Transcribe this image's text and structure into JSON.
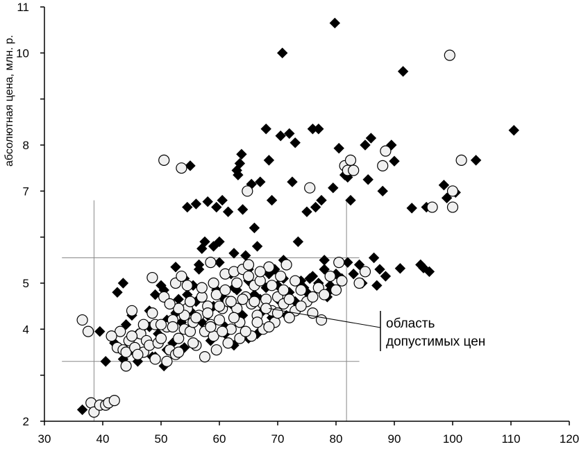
{
  "chart_data": {
    "type": "scatter",
    "title": "",
    "xlabel": "",
    "ylabel": "абсолютная цена, млн. р.",
    "xlim": [
      30,
      120
    ],
    "ylim": [
      2,
      11
    ],
    "x_ticks": [
      "30",
      "40",
      "50",
      "60",
      "70",
      "80",
      "90",
      "100",
      "110",
      "120"
    ],
    "y_ticks": [
      "2",
      "3",
      "4",
      "5",
      "6",
      "7",
      "8",
      "9",
      "10",
      "11"
    ],
    "y_tick_labels_shown": [
      "2",
      "4",
      "5",
      "7",
      "8",
      "10",
      "11"
    ],
    "grid": false,
    "legend": "none",
    "guide_lines": {
      "vertical_x": [
        38.5,
        81.8
      ],
      "horizontal_y": [
        3.3,
        5.55
      ],
      "vertical_span_y": [
        2,
        6.8
      ],
      "horizontal_span_x": [
        33,
        84
      ]
    },
    "annotation": {
      "lines": [
        "область",
        "допустимых цен"
      ],
      "points_to": [
        68.5,
        4.45
      ]
    },
    "series": [
      {
        "marker": "diamond",
        "color": "#000000",
        "points": [
          [
            36.5,
            2.25
          ],
          [
            38.5,
            2.35
          ],
          [
            39.5,
            3.95
          ],
          [
            42,
            3.7
          ],
          [
            42.5,
            4.8
          ],
          [
            43.5,
            5.0
          ],
          [
            44,
            4.1
          ],
          [
            45,
            4.3
          ],
          [
            45.5,
            3.6
          ],
          [
            46,
            3.9
          ],
          [
            47,
            4.05
          ],
          [
            48,
            4.4
          ],
          [
            48.5,
            3.4
          ],
          [
            49,
            3.4
          ],
          [
            49.5,
            3.9
          ],
          [
            50,
            4.95
          ],
          [
            50.5,
            4.85
          ],
          [
            51,
            4.2
          ],
          [
            51.5,
            4.55
          ],
          [
            52,
            3.7
          ],
          [
            52.5,
            5.35
          ],
          [
            53,
            4.65
          ],
          [
            53.5,
            3.55
          ],
          [
            54,
            3.6
          ],
          [
            54.5,
            4.75
          ],
          [
            54.5,
            6.65
          ],
          [
            55,
            7.55
          ],
          [
            55.5,
            4.95
          ],
          [
            56,
            6.72
          ],
          [
            56.5,
            5.4
          ],
          [
            57,
            5.75
          ],
          [
            57.5,
            5.9
          ],
          [
            58,
            6.77
          ],
          [
            58.5,
            3.75
          ],
          [
            59,
            5.8
          ],
          [
            59.5,
            6.65
          ],
          [
            60,
            5.9
          ],
          [
            60.5,
            4.7
          ],
          [
            60.5,
            6.8
          ],
          [
            61,
            3.9
          ],
          [
            61.5,
            6.55
          ],
          [
            62,
            5.2
          ],
          [
            62.5,
            4.9
          ],
          [
            63,
            7.45
          ],
          [
            63.2,
            7.35
          ],
          [
            63.5,
            7.6
          ],
          [
            63.8,
            7.8
          ],
          [
            64,
            6.6
          ],
          [
            64.5,
            5.6
          ],
          [
            65,
            3.8
          ],
          [
            65.5,
            7.15
          ],
          [
            66,
            6.2
          ],
          [
            66.5,
            5.8
          ],
          [
            67,
            7.2
          ],
          [
            67.5,
            4.4
          ],
          [
            68,
            8.35
          ],
          [
            68.5,
            7.67
          ],
          [
            69,
            6.8
          ],
          [
            69.5,
            5.3
          ],
          [
            70,
            4.95
          ],
          [
            70.5,
            8.2
          ],
          [
            70.8,
            10.0
          ],
          [
            71,
            5.5
          ],
          [
            71.5,
            4.6
          ],
          [
            72,
            8.25
          ],
          [
            72.5,
            7.2
          ],
          [
            73,
            8.05
          ],
          [
            73.5,
            5.9
          ],
          [
            74,
            5.05
          ],
          [
            74.5,
            4.9
          ],
          [
            75,
            6.55
          ],
          [
            75.5,
            5.1
          ],
          [
            76,
            8.35
          ],
          [
            76.5,
            6.65
          ],
          [
            77,
            8.35
          ],
          [
            77.5,
            6.8
          ],
          [
            78,
            5.5
          ],
          [
            78.5,
            4.7
          ],
          [
            79,
            4.95
          ],
          [
            79.5,
            7.07
          ],
          [
            79.8,
            10.65
          ],
          [
            80.5,
            7.93
          ],
          [
            81,
            5.1
          ],
          [
            81.5,
            7.35
          ],
          [
            82,
            7.3
          ],
          [
            82.5,
            6.8
          ],
          [
            83,
            5.2
          ],
          [
            84,
            5.4
          ],
          [
            84.5,
            5.0
          ],
          [
            85,
            8.0
          ],
          [
            85.5,
            7.25
          ],
          [
            86,
            8.15
          ],
          [
            86.5,
            5.55
          ],
          [
            87,
            4.95
          ],
          [
            87.5,
            5.3
          ],
          [
            88,
            7.0
          ],
          [
            88.5,
            5.15
          ],
          [
            89.5,
            8.0
          ],
          [
            90,
            7.65
          ],
          [
            91,
            5.32
          ],
          [
            91.5,
            9.6
          ],
          [
            93,
            6.63
          ],
          [
            94.5,
            5.4
          ],
          [
            95,
            5.33
          ],
          [
            95.5,
            6.65
          ],
          [
            96,
            5.25
          ],
          [
            98.5,
            7.13
          ],
          [
            99,
            6.85
          ],
          [
            100.5,
            6.97
          ],
          [
            104,
            7.67
          ],
          [
            110.5,
            8.32
          ],
          [
            47.5,
            3.75
          ],
          [
            50.5,
            3.2
          ],
          [
            53.5,
            4.15
          ],
          [
            56,
            4.6
          ],
          [
            58,
            4.3
          ],
          [
            59.5,
            4.85
          ],
          [
            62,
            4.55
          ],
          [
            64,
            4.3
          ],
          [
            66,
            4.75
          ],
          [
            68,
            4.9
          ],
          [
            70,
            4.65
          ],
          [
            72,
            4.8
          ],
          [
            74,
            4.95
          ],
          [
            76,
            5.15
          ],
          [
            78,
            5.3
          ],
          [
            80,
            5.2
          ],
          [
            82,
            5.45
          ],
          [
            43.5,
            3.35
          ],
          [
            45,
            3.55
          ],
          [
            48,
            4.05
          ],
          [
            51,
            3.55
          ],
          [
            53,
            3.8
          ],
          [
            55,
            4.4
          ],
          [
            57,
            4.15
          ],
          [
            59,
            4.5
          ],
          [
            61,
            4.05
          ],
          [
            63,
            4.85
          ],
          [
            65,
            5.05
          ],
          [
            67,
            4.65
          ],
          [
            69,
            4.25
          ],
          [
            71,
            5.1
          ],
          [
            73,
            4.6
          ],
          [
            75,
            4.8
          ],
          [
            77,
            5.0
          ],
          [
            79,
            4.85
          ],
          [
            54,
            5.1
          ],
          [
            56.5,
            5.3
          ],
          [
            60,
            5.45
          ],
          [
            62.5,
            5.65
          ],
          [
            65,
            5.3
          ],
          [
            68.5,
            5.2
          ],
          [
            71.5,
            4.3
          ],
          [
            66.5,
            3.9
          ],
          [
            62.5,
            3.65
          ],
          [
            58,
            3.95
          ],
          [
            52.5,
            4.35
          ],
          [
            49,
            4.75
          ],
          [
            46,
            3.3
          ],
          [
            40.5,
            3.3
          ]
        ]
      },
      {
        "marker": "circle",
        "color": "#f0f0f0",
        "points": [
          [
            36.5,
            4.2
          ],
          [
            37.5,
            3.95
          ],
          [
            38,
            2.4
          ],
          [
            38.5,
            2.2
          ],
          [
            39.5,
            2.35
          ],
          [
            40.5,
            2.35
          ],
          [
            41,
            2.4
          ],
          [
            42,
            2.45
          ],
          [
            42.5,
            3.6
          ],
          [
            43,
            3.95
          ],
          [
            43.5,
            3.55
          ],
          [
            44,
            3.5
          ],
          [
            44.5,
            3.75
          ],
          [
            45,
            4.4
          ],
          [
            45.5,
            3.6
          ],
          [
            46.5,
            3.9
          ],
          [
            47,
            3.5
          ],
          [
            47.5,
            3.75
          ],
          [
            48,
            3.65
          ],
          [
            48.5,
            5.12
          ],
          [
            49,
            4.1
          ],
          [
            49.5,
            3.7
          ],
          [
            50,
            3.8
          ],
          [
            50.5,
            4.7
          ],
          [
            50.5,
            7.67
          ],
          [
            51,
            4.05
          ],
          [
            51.5,
            3.55
          ],
          [
            52,
            4.2
          ],
          [
            52.5,
            3.45
          ],
          [
            52.5,
            5.0
          ],
          [
            53,
            3.8
          ],
          [
            53.5,
            7.5
          ],
          [
            53.5,
            5.15
          ],
          [
            54,
            4.0
          ],
          [
            54.5,
            4.45
          ],
          [
            54.5,
            4.95
          ],
          [
            55,
            3.95
          ],
          [
            55.5,
            4.15
          ],
          [
            56,
            3.65
          ],
          [
            56.5,
            4.3
          ],
          [
            57,
            4.7
          ],
          [
            57.5,
            3.95
          ],
          [
            58,
            4.5
          ],
          [
            58.5,
            4.1
          ],
          [
            58.5,
            5.45
          ],
          [
            59,
            3.85
          ],
          [
            59.5,
            4.75
          ],
          [
            60,
            4.2
          ],
          [
            60.5,
            4.45
          ],
          [
            61,
            5.2
          ],
          [
            61.5,
            4.6
          ],
          [
            62,
            4.0
          ],
          [
            62.5,
            5.25
          ],
          [
            63,
            4.45
          ],
          [
            63.5,
            4.15
          ],
          [
            64,
            5.3
          ],
          [
            64.5,
            4.7
          ],
          [
            64.8,
            7.0
          ],
          [
            65,
            5.4
          ],
          [
            65.5,
            4.55
          ],
          [
            66,
            4.95
          ],
          [
            66.5,
            4.3
          ],
          [
            67,
            5.05
          ],
          [
            67.5,
            4.55
          ],
          [
            68,
            4.65
          ],
          [
            68.5,
            5.35
          ],
          [
            69,
            4.4
          ],
          [
            69.5,
            4.15
          ],
          [
            70,
            4.7
          ],
          [
            70.5,
            5.15
          ],
          [
            71,
            4.55
          ],
          [
            71.5,
            5.4
          ],
          [
            72,
            4.65
          ],
          [
            73,
            4.4
          ],
          [
            74,
            4.85
          ],
          [
            75,
            4.6
          ],
          [
            75.5,
            7.07
          ],
          [
            76,
            4.35
          ],
          [
            77,
            4.9
          ],
          [
            77.5,
            4.2
          ],
          [
            78,
            4.75
          ],
          [
            79,
            5.15
          ],
          [
            80,
            4.85
          ],
          [
            80.5,
            5.45
          ],
          [
            81,
            5.05
          ],
          [
            81.5,
            7.55
          ],
          [
            82,
            7.45
          ],
          [
            82.5,
            7.67
          ],
          [
            83,
            7.45
          ],
          [
            84,
            5.0
          ],
          [
            85,
            5.25
          ],
          [
            88,
            7.55
          ],
          [
            88.5,
            7.87
          ],
          [
            96.5,
            6.65
          ],
          [
            99.5,
            9.95
          ],
          [
            100,
            7.0
          ],
          [
            100,
            6.65
          ],
          [
            101.5,
            7.67
          ],
          [
            41.5,
            3.85
          ],
          [
            44,
            3.2
          ],
          [
            46,
            3.45
          ],
          [
            49,
            3.35
          ],
          [
            51,
            3.3
          ],
          [
            53,
            3.5
          ],
          [
            55.5,
            3.7
          ],
          [
            57.5,
            3.4
          ],
          [
            59.5,
            3.55
          ],
          [
            61.5,
            3.7
          ],
          [
            63.5,
            3.8
          ],
          [
            65.5,
            3.85
          ],
          [
            67.5,
            4.0
          ],
          [
            48.5,
            4.35
          ],
          [
            50,
            4.1
          ],
          [
            52,
            4.05
          ],
          [
            54,
            4.3
          ],
          [
            56,
            4.25
          ],
          [
            58,
            4.35
          ],
          [
            60,
            4.5
          ],
          [
            62,
            4.6
          ],
          [
            64,
            4.65
          ],
          [
            66,
            4.6
          ],
          [
            68,
            4.45
          ],
          [
            70,
            4.35
          ],
          [
            72,
            4.25
          ],
          [
            74,
            4.5
          ],
          [
            57,
            4.9
          ],
          [
            59,
            5.0
          ],
          [
            61,
            4.85
          ],
          [
            63,
            5.0
          ],
          [
            65,
            5.15
          ],
          [
            67,
            5.25
          ],
          [
            69,
            4.95
          ],
          [
            71,
            4.85
          ],
          [
            73,
            5.05
          ],
          [
            76,
            4.7
          ],
          [
            55,
            4.6
          ],
          [
            58.5,
            4.05
          ],
          [
            60.5,
            3.95
          ],
          [
            62.5,
            4.25
          ],
          [
            64.5,
            3.95
          ],
          [
            66.5,
            4.15
          ],
          [
            68.5,
            4.05
          ],
          [
            53,
            4.45
          ],
          [
            51.5,
            4.55
          ],
          [
            47,
            4.1
          ],
          [
            45,
            3.85
          ]
        ]
      }
    ]
  }
}
